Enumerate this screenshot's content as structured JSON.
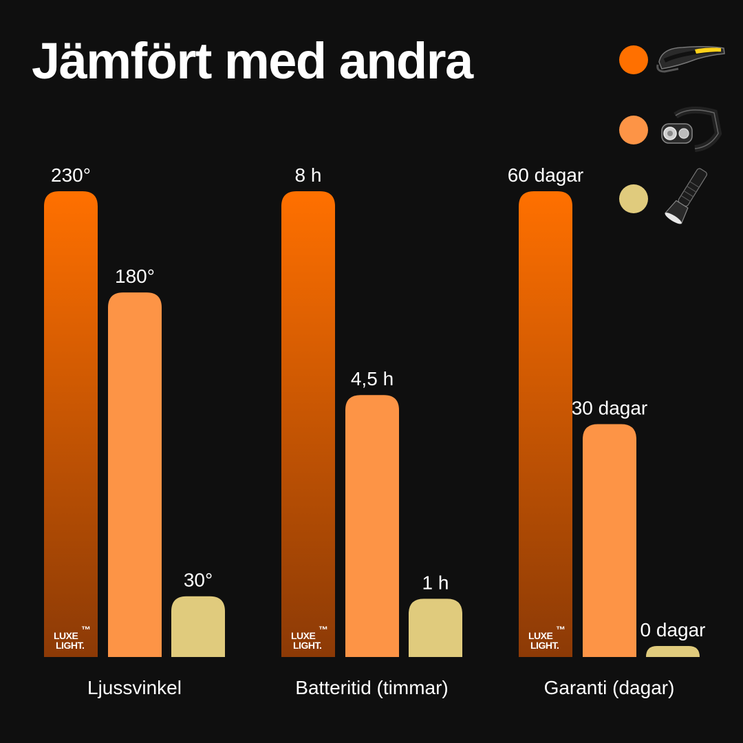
{
  "title": "Jämfört med andra",
  "brand": {
    "line1": "LUXE",
    "line2": "LIGHT.",
    "trademark": "™"
  },
  "colors": {
    "background": "#0f0f0f",
    "series1_top": "#ff7000",
    "series1_bottom": "#8c3a06",
    "series2": "#fd9446",
    "series3": "#e0cb7d",
    "text": "#ffffff"
  },
  "legend": [
    {
      "color": "#ff7000",
      "icon": "led-strip-headlamp-icon"
    },
    {
      "color": "#fd9446",
      "icon": "classic-headlamp-icon"
    },
    {
      "color": "#e0cb7d",
      "icon": "flashlight-icon"
    }
  ],
  "chart_data": {
    "type": "bar",
    "title": "Jämfört med andra",
    "legend_placement": "top-right",
    "grid": false,
    "groups": [
      {
        "category": "Ljussvinkel",
        "values": [
          230,
          180,
          30
        ],
        "labels": [
          "230°",
          "180°",
          "30°"
        ]
      },
      {
        "category": "Batteritid (timmar)",
        "values": [
          8,
          4.5,
          1
        ],
        "labels": [
          "8 h",
          "4,5 h",
          "1 h"
        ]
      },
      {
        "category": "Garanti (dagar)",
        "values": [
          60,
          30,
          0
        ],
        "labels": [
          "60 dagar",
          "30 dagar",
          "0 dagar"
        ]
      }
    ]
  }
}
